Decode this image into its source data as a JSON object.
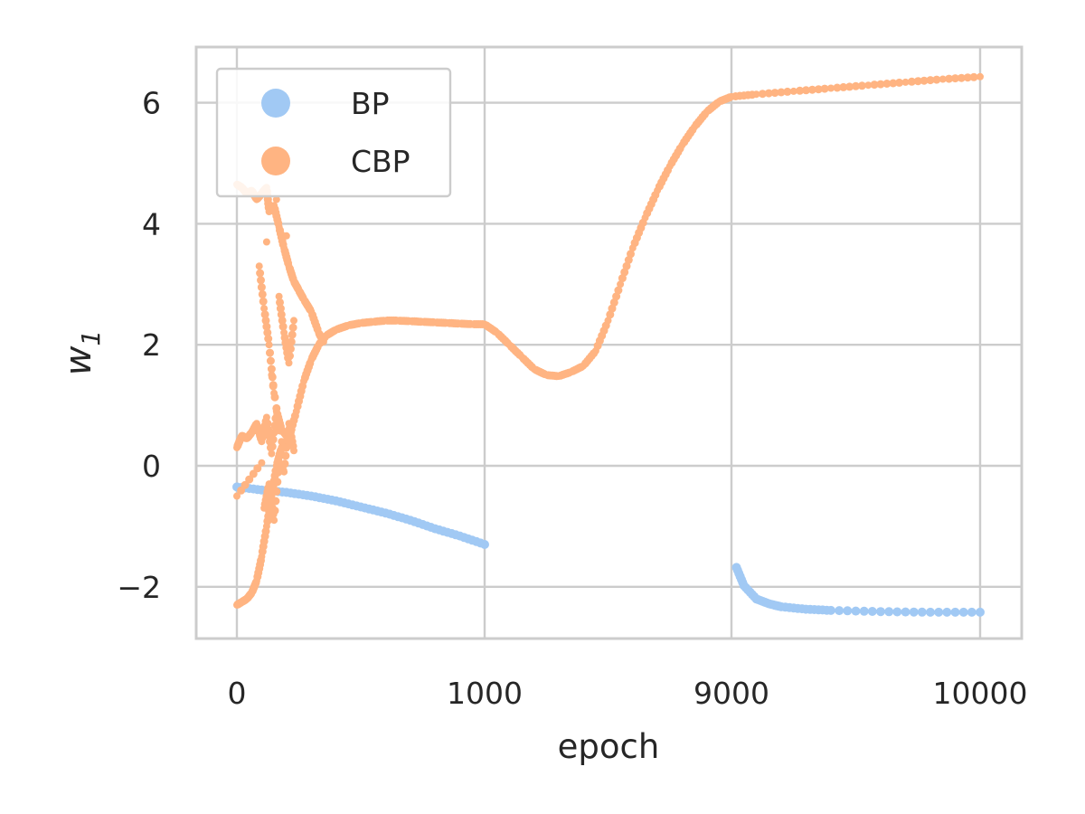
{
  "chart_data": {
    "type": "scatter",
    "title": "",
    "xlabel": "epoch",
    "ylabel": {
      "main": "w",
      "subscript": "1"
    },
    "x_axis_note": "piecewise (broken) axis: 0–1000 and 9000–10000 drawn in three equal-width segments",
    "x_ticks": [
      0,
      1000,
      9000,
      10000
    ],
    "x_tick_labels": [
      "0",
      "1000",
      "9000",
      "10000"
    ],
    "y_ticks": [
      -2,
      0,
      2,
      4,
      6
    ],
    "y_tick_labels": [
      "−2",
      "0",
      "2",
      "4",
      "6"
    ],
    "ylim": [
      -2.9,
      6.9
    ],
    "grid": true,
    "legend": {
      "position": "top-left",
      "entries": [
        {
          "label": "BP",
          "color": "#a1c9f4"
        },
        {
          "label": "CBP",
          "color": "#ffb482"
        }
      ]
    },
    "series": [
      {
        "name": "BP",
        "color": "#a1c9f4",
        "points": [
          [
            0,
            -0.35
          ],
          [
            100,
            -0.4
          ],
          [
            200,
            -0.44
          ],
          [
            300,
            -0.5
          ],
          [
            400,
            -0.58
          ],
          [
            500,
            -0.68
          ],
          [
            600,
            -0.78
          ],
          [
            700,
            -0.9
          ],
          [
            800,
            -1.04
          ],
          [
            900,
            -1.16
          ],
          [
            1000,
            -1.3
          ],
          [
            9020,
            -1.68
          ],
          [
            9050,
            -1.98
          ],
          [
            9100,
            -2.2
          ],
          [
            9150,
            -2.28
          ],
          [
            9200,
            -2.33
          ],
          [
            9300,
            -2.37
          ],
          [
            9400,
            -2.39
          ],
          [
            9600,
            -2.41
          ],
          [
            9800,
            -2.42
          ],
          [
            10000,
            -2.42
          ]
        ]
      },
      {
        "name": "CBP",
        "color": "#ffb482",
        "points": [
          [
            0,
            -2.3
          ],
          [
            20,
            -2.25
          ],
          [
            40,
            -2.2
          ],
          [
            60,
            -2.1
          ],
          [
            80,
            -1.9
          ],
          [
            100,
            -1.5
          ],
          [
            120,
            -1.0
          ],
          [
            140,
            -0.5
          ],
          [
            160,
            0.0
          ],
          [
            180,
            0.3
          ],
          [
            210,
            0.45
          ],
          [
            240,
            0.9
          ],
          [
            270,
            1.4
          ],
          [
            300,
            1.75
          ],
          [
            330,
            2.0
          ],
          [
            360,
            2.15
          ],
          [
            400,
            2.25
          ],
          [
            450,
            2.32
          ],
          [
            500,
            2.36
          ],
          [
            550,
            2.38
          ],
          [
            600,
            2.4
          ],
          [
            650,
            2.4
          ],
          [
            700,
            2.39
          ],
          [
            750,
            2.38
          ],
          [
            800,
            2.37
          ],
          [
            850,
            2.36
          ],
          [
            900,
            2.35
          ],
          [
            950,
            2.34
          ],
          [
            1000,
            2.34
          ],
          [
            1050,
            2.2
          ],
          [
            1100,
            2.0
          ],
          [
            1150,
            1.8
          ],
          [
            1200,
            1.6
          ],
          [
            1250,
            1.5
          ],
          [
            1300,
            1.48
          ],
          [
            1350,
            1.55
          ],
          [
            1400,
            1.65
          ],
          [
            1450,
            1.9
          ],
          [
            1500,
            2.4
          ],
          [
            1550,
            3.0
          ],
          [
            1600,
            3.6
          ],
          [
            1650,
            4.1
          ],
          [
            1700,
            4.55
          ],
          [
            1750,
            4.95
          ],
          [
            1800,
            5.3
          ],
          [
            1850,
            5.6
          ],
          [
            1900,
            5.85
          ],
          [
            1950,
            6.02
          ],
          [
            2000,
            6.1
          ],
          [
            2100,
            6.14
          ],
          [
            2250,
            6.19
          ],
          [
            2400,
            6.24
          ],
          [
            2550,
            6.29
          ],
          [
            2700,
            6.34
          ],
          [
            2850,
            6.39
          ],
          [
            3000,
            6.43
          ],
          [
            0,
            4.65
          ],
          [
            20,
            4.6
          ],
          [
            40,
            4.5
          ],
          [
            60,
            4.55
          ],
          [
            80,
            4.4
          ],
          [
            100,
            4.5
          ],
          [
            120,
            4.6
          ],
          [
            130,
            4.2
          ],
          [
            150,
            4.3
          ],
          [
            170,
            3.95
          ],
          [
            190,
            3.6
          ],
          [
            210,
            3.3
          ],
          [
            230,
            3.05
          ],
          [
            250,
            2.9
          ],
          [
            270,
            2.75
          ],
          [
            300,
            2.55
          ],
          [
            330,
            2.2
          ],
          [
            350,
            2.05
          ],
          [
            0,
            0.3
          ],
          [
            20,
            0.5
          ],
          [
            40,
            0.45
          ],
          [
            60,
            0.55
          ],
          [
            80,
            0.7
          ],
          [
            100,
            0.4
          ],
          [
            120,
            0.8
          ],
          [
            140,
            0.2
          ],
          [
            160,
            0.9
          ],
          [
            180,
            0.6
          ],
          [
            200,
            0.5
          ],
          [
            220,
            0.35
          ],
          [
            90,
            3.3
          ],
          [
            110,
            2.6
          ],
          [
            130,
            2.0
          ],
          [
            150,
            1.2
          ],
          [
            170,
            2.8
          ],
          [
            190,
            2.2
          ],
          [
            210,
            1.7
          ],
          [
            230,
            2.4
          ],
          [
            110,
            -0.7
          ],
          [
            130,
            -0.3
          ],
          [
            150,
            -0.9
          ],
          [
            170,
            0.05
          ],
          [
            190,
            -0.1
          ],
          [
            210,
            0.7
          ],
          [
            230,
            0.25
          ],
          [
            0,
            -0.5
          ],
          [
            100,
            0.05
          ],
          [
            140,
            1.5
          ],
          [
            180,
            0.4
          ],
          [
            200,
            3.8
          ],
          [
            160,
            4.4
          ],
          [
            120,
            3.7
          ]
        ]
      }
    ]
  }
}
